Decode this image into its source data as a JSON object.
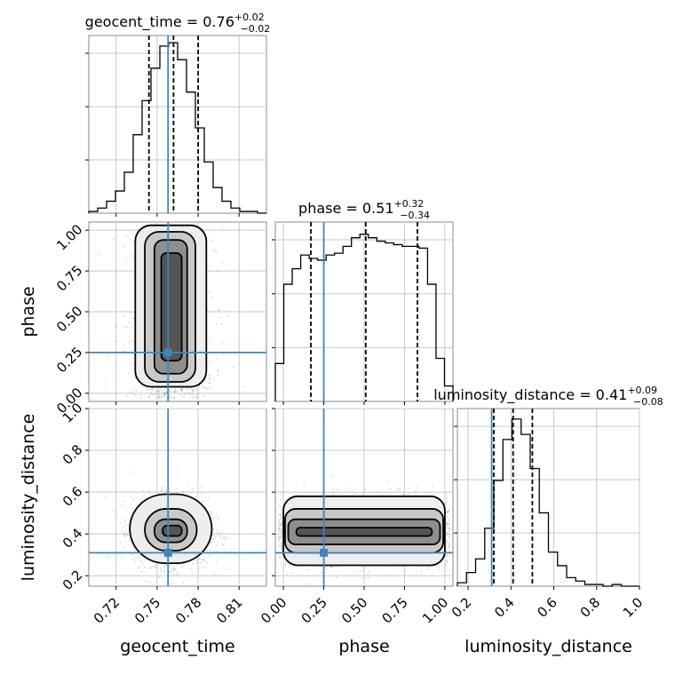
{
  "chart_data": {
    "type": "corner",
    "truth_color": "#4682b4",
    "parameters": [
      {
        "name": "geocent_time",
        "axis_label": "geocent_time",
        "range": [
          0.7,
          0.83
        ],
        "ticks": [
          0.72,
          0.75,
          0.78,
          0.81
        ],
        "tick_labels": [
          "0.72",
          "0.75",
          "0.78",
          "0.81"
        ],
        "truth": 0.758,
        "quantiles": [
          0.744,
          0.762,
          0.78
        ],
        "title": {
          "prefix": "geocent_time = 0.76",
          "plus": "+0.02",
          "minus": "−0.02"
        },
        "hist": [
          0.01,
          0.03,
          0.07,
          0.13,
          0.24,
          0.46,
          0.66,
          0.85,
          0.98,
          1.0,
          0.9,
          0.71,
          0.5,
          0.3,
          0.15,
          0.07,
          0.03,
          0.01,
          0.01,
          0.0
        ]
      },
      {
        "name": "phase",
        "axis_label": "phase",
        "range": [
          -0.05,
          1.05
        ],
        "ticks": [
          0.0,
          0.25,
          0.5,
          0.75,
          1.0
        ],
        "tick_labels": [
          "0.00",
          "0.25",
          "0.50",
          "0.75",
          "1.00"
        ],
        "truth": 0.25,
        "quantiles": [
          0.17,
          0.51,
          0.83
        ],
        "title": {
          "prefix": "phase = 0.51",
          "plus": "+0.32",
          "minus": "−0.34"
        },
        "hist": [
          0.22,
          0.68,
          0.77,
          0.85,
          0.83,
          0.82,
          0.85,
          0.86,
          0.9,
          0.95,
          0.97,
          0.95,
          0.93,
          0.92,
          0.91,
          0.9,
          0.9,
          0.89,
          0.68,
          0.25,
          0.09
        ]
      },
      {
        "name": "luminosity_distance",
        "axis_label": "luminosity_distance",
        "range": [
          0.15,
          1.0
        ],
        "ticks": [
          0.2,
          0.4,
          0.6,
          0.8,
          1.0
        ],
        "tick_labels": [
          "0.2",
          "0.4",
          "0.6",
          "0.8",
          "1.0"
        ],
        "truth": 0.31,
        "quantiles": [
          0.32,
          0.41,
          0.5
        ],
        "title": {
          "prefix": "luminosity_distance = 0.41",
          "plus": "+0.09",
          "minus": "−0.08"
        },
        "hist": [
          0.02,
          0.08,
          0.16,
          0.34,
          0.62,
          0.86,
          0.98,
          0.89,
          0.69,
          0.43,
          0.2,
          0.12,
          0.05,
          0.03,
          0.01,
          0.01,
          0.0,
          0.01,
          0.0,
          0.0
        ]
      }
    ],
    "pairs": [
      {
        "x": "geocent_time",
        "y": "phase"
      },
      {
        "x": "geocent_time",
        "y": "luminosity_distance"
      },
      {
        "x": "phase",
        "y": "luminosity_distance"
      }
    ]
  }
}
